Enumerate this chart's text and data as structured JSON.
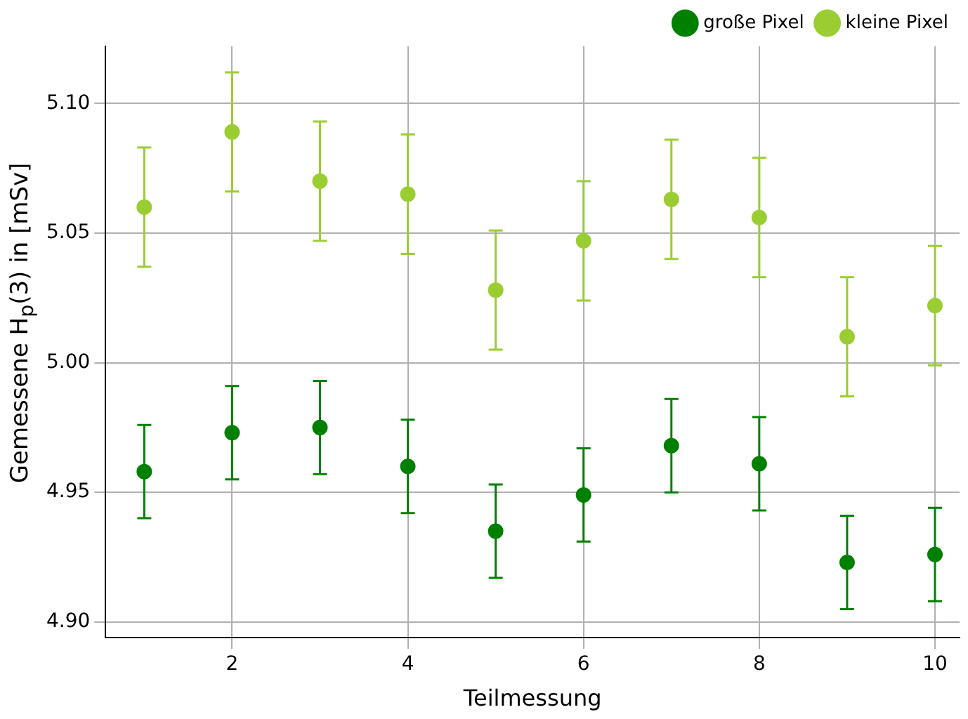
{
  "chart_data": {
    "type": "scatter",
    "xlabel": "Teilmessung",
    "ylabel": "Gemessene H$_{p}$(3) in [mSv]",
    "x": [
      1,
      2,
      3,
      4,
      5,
      6,
      7,
      8,
      9,
      10
    ],
    "series": [
      {
        "name": "große Pixel",
        "color": "#008000",
        "values": [
          4.958,
          4.973,
          4.975,
          4.96,
          4.935,
          4.949,
          4.968,
          4.961,
          4.923,
          4.926
        ],
        "errors": [
          0.018,
          0.018,
          0.018,
          0.018,
          0.018,
          0.018,
          0.018,
          0.018,
          0.018,
          0.018
        ]
      },
      {
        "name": "kleine Pixel",
        "color": "#9acd32",
        "values": [
          5.06,
          5.089,
          5.07,
          5.065,
          5.028,
          5.047,
          5.063,
          5.056,
          5.01,
          5.022
        ],
        "errors": [
          0.023,
          0.023,
          0.023,
          0.023,
          0.023,
          0.023,
          0.023,
          0.023,
          0.023,
          0.023
        ]
      }
    ],
    "xlim": [
      0.56,
      10.28
    ],
    "xticks": [
      2,
      4,
      6,
      8,
      10
    ],
    "ylim": [
      4.894,
      5.122
    ],
    "yticks": [
      {
        "value": 4.9,
        "label": "4.90"
      },
      {
        "value": 4.95,
        "label": "4.95"
      },
      {
        "value": 5.0,
        "label": "5.00"
      },
      {
        "value": 5.05,
        "label": "5.05"
      },
      {
        "value": 5.1,
        "label": "5.10"
      }
    ],
    "grid": true,
    "legend": "top right",
    "marker": "circle"
  }
}
